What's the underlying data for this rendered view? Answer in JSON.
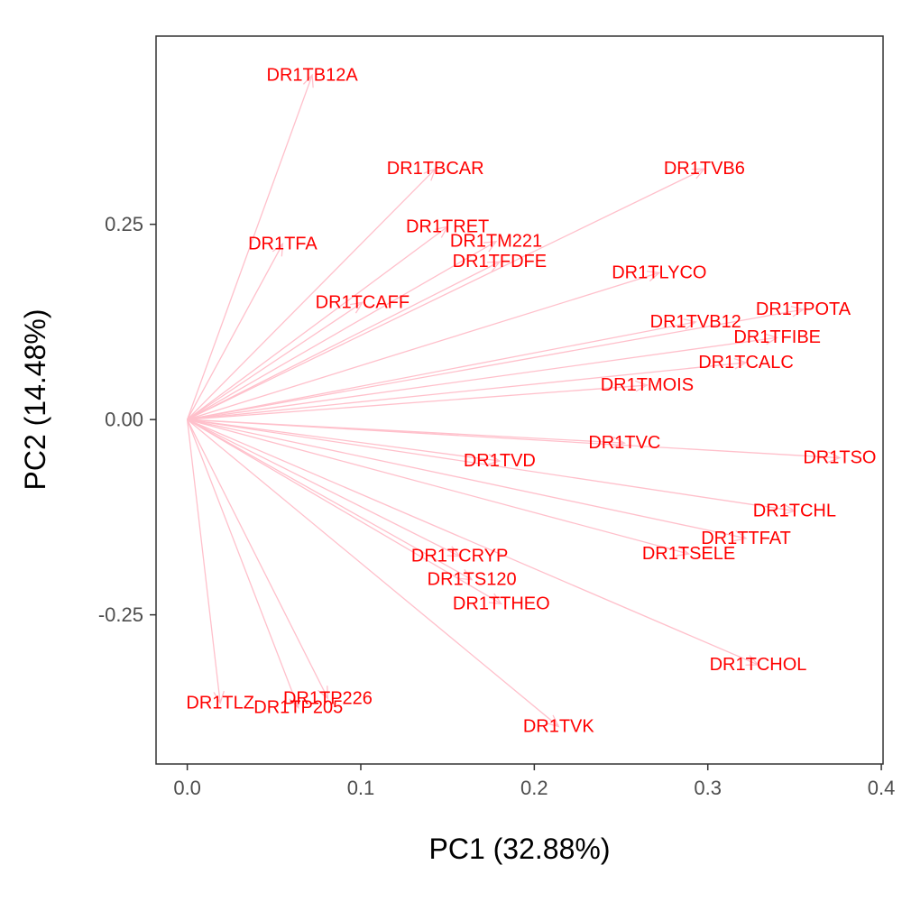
{
  "chart_data": {
    "type": "biplot-loadings",
    "xlabel": "PC1 (32.88%)",
    "ylabel": "PC2 (14.48%)",
    "xlim": [
      -0.018,
      0.401
    ],
    "ylim": [
      -0.441,
      0.491
    ],
    "x_ticks": [
      {
        "value": 0.0,
        "label": "0.0"
      },
      {
        "value": 0.1,
        "label": "0.1"
      },
      {
        "value": 0.2,
        "label": "0.2"
      },
      {
        "value": 0.3,
        "label": "0.3"
      },
      {
        "value": 0.4,
        "label": "0.4"
      }
    ],
    "y_ticks": [
      {
        "value": -0.25,
        "label": "-0.25"
      },
      {
        "value": 0.0,
        "label": "0.00"
      },
      {
        "value": 0.25,
        "label": "0.25"
      }
    ],
    "grid": false,
    "arrow_color": "#ffc0cb",
    "label_color": "#ff0000",
    "vectors": [
      {
        "name": "DR1TB12A",
        "x": 0.072,
        "y": 0.441
      },
      {
        "name": "DR1TBCAR",
        "x": 0.143,
        "y": 0.321
      },
      {
        "name": "DR1TVB6",
        "x": 0.298,
        "y": 0.321
      },
      {
        "name": "DR1TRET",
        "x": 0.15,
        "y": 0.247
      },
      {
        "name": "DR1TM221",
        "x": 0.178,
        "y": 0.228
      },
      {
        "name": "DR1TFDFE",
        "x": 0.18,
        "y": 0.202
      },
      {
        "name": "DR1TFA",
        "x": 0.055,
        "y": 0.225
      },
      {
        "name": "DR1TCAFF",
        "x": 0.101,
        "y": 0.15
      },
      {
        "name": "DR1TLYCO",
        "x": 0.272,
        "y": 0.188
      },
      {
        "name": "DR1TVB12",
        "x": 0.293,
        "y": 0.125
      },
      {
        "name": "DR1TPOTA",
        "x": 0.355,
        "y": 0.141
      },
      {
        "name": "DR1TFIBE",
        "x": 0.34,
        "y": 0.105
      },
      {
        "name": "DR1TCALC",
        "x": 0.322,
        "y": 0.073
      },
      {
        "name": "DR1TMOIS",
        "x": 0.265,
        "y": 0.044
      },
      {
        "name": "DR1TVC",
        "x": 0.252,
        "y": -0.03
      },
      {
        "name": "DR1TVD",
        "x": 0.18,
        "y": -0.053
      },
      {
        "name": "DR1TSO",
        "x": 0.376,
        "y": -0.049
      },
      {
        "name": "DR1TCHL",
        "x": 0.35,
        "y": -0.117
      },
      {
        "name": "DR1TTFAT",
        "x": 0.322,
        "y": -0.152
      },
      {
        "name": "DR1TSELE",
        "x": 0.289,
        "y": -0.172
      },
      {
        "name": "DR1TCRYP",
        "x": 0.157,
        "y": -0.175
      },
      {
        "name": "DR1TS120",
        "x": 0.164,
        "y": -0.205
      },
      {
        "name": "DR1TTHEO",
        "x": 0.181,
        "y": -0.236
      },
      {
        "name": "DR1TCHOL",
        "x": 0.329,
        "y": -0.314
      },
      {
        "name": "DR1TVK",
        "x": 0.214,
        "y": -0.393
      },
      {
        "name": "DR1TLZ",
        "x": 0.019,
        "y": -0.363
      },
      {
        "name": "DR1TP226",
        "x": 0.081,
        "y": -0.357
      },
      {
        "name": "DR1TP205",
        "x": 0.064,
        "y": -0.369
      }
    ]
  }
}
